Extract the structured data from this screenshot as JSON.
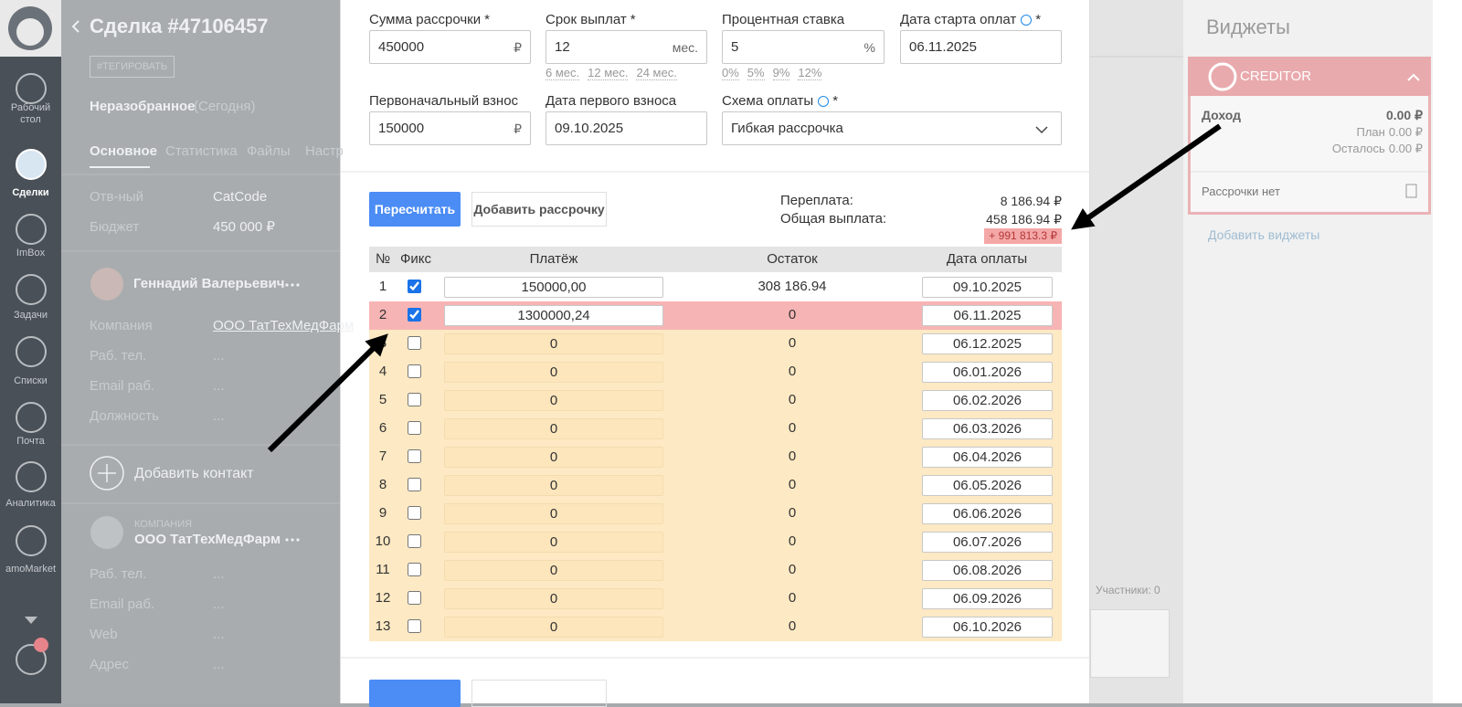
{
  "sidebar": {
    "items": [
      "Рабочий стол",
      "Сделки",
      "ImBox",
      "Задачи",
      "Списки",
      "Почта",
      "Аналитика",
      "amoMarket"
    ],
    "active": 1,
    "notifications": "3"
  },
  "deal": {
    "title": "Сделка #47106457",
    "tag": "#ТЕГИРОВАТЬ",
    "status": "Неразобранное",
    "status_date": "(Сегодня)",
    "tabs": [
      "Основное",
      "Статистика",
      "Файлы",
      "Настр"
    ],
    "fields": [
      {
        "label": "Отв-ный",
        "value": "CatCode"
      },
      {
        "label": "Бюджет",
        "value": "450 000 ₽"
      }
    ],
    "contact": {
      "name": "Геннадий Валерьевич",
      "fields": [
        {
          "label": "Компания",
          "value": "ООО ТатТехМедФарм"
        },
        {
          "label": "Раб. тел.",
          "value": "..."
        },
        {
          "label": "Email раб.",
          "value": "..."
        },
        {
          "label": "Должность",
          "value": "..."
        }
      ]
    },
    "add_contact": "Добавить контакт",
    "company": {
      "caption": "КОМПАНИЯ",
      "name": "ООО ТатТехМедФарм",
      "fields": [
        {
          "label": "Раб. тел.",
          "value": "..."
        },
        {
          "label": "Email раб.",
          "value": "..."
        },
        {
          "label": "Web",
          "value": "..."
        },
        {
          "label": "Адрес",
          "value": "..."
        }
      ]
    }
  },
  "modal": {
    "fields": [
      {
        "label": "Сумма рассрочки",
        "required": "*",
        "value": "450000",
        "suffix": "₽"
      },
      {
        "label": "Срок выплат",
        "required": "*",
        "value": "12",
        "suffix": "мес.",
        "presets": [
          "6 мес.",
          "12 мес.",
          "24 мес."
        ]
      },
      {
        "label": "Процентная ставка",
        "value": "5",
        "suffix": "%",
        "presets": [
          "0%",
          "5%",
          "9%",
          "12%"
        ]
      },
      {
        "label": "Дата старта оплат",
        "info": true,
        "required": "*",
        "value": "06.11.2025"
      },
      {
        "label": "Первоначальный взнос",
        "value": "150000",
        "suffix": "₽"
      },
      {
        "label": "Дата первого взноса",
        "value": "09.10.2025"
      },
      {
        "label": "Схема оплаты",
        "info": true,
        "required": "*",
        "value": "Гибкая рассрочка",
        "select": true
      }
    ],
    "buttons": [
      "Пересчитать",
      "Добавить рассрочку"
    ],
    "summary": [
      {
        "label": "Переплата:",
        "value": "8 186.94 ₽"
      },
      {
        "label": "Общая выплата:",
        "value": "458 186.94 ₽"
      }
    ],
    "difference": "+ 991 813.3 ₽",
    "table": {
      "columns": [
        "№",
        "Фикс",
        "Платёж",
        "Остаток",
        "Дата оплаты"
      ],
      "highlight_row": 1,
      "rows": [
        {
          "n": "1",
          "fixed": true,
          "payment": "150000,00",
          "remaining": "308 186.94",
          "date": "09.10.2025"
        },
        {
          "n": "2",
          "fixed": true,
          "payment": "1300000,24",
          "remaining": "0",
          "date": "06.11.2025"
        },
        {
          "n": "3",
          "fixed": false,
          "payment": "0",
          "remaining": "0",
          "date": "06.12.2025"
        },
        {
          "n": "4",
          "fixed": false,
          "payment": "0",
          "remaining": "0",
          "date": "06.01.2026"
        },
        {
          "n": "5",
          "fixed": false,
          "payment": "0",
          "remaining": "0",
          "date": "06.02.2026"
        },
        {
          "n": "6",
          "fixed": false,
          "payment": "0",
          "remaining": "0",
          "date": "06.03.2026"
        },
        {
          "n": "7",
          "fixed": false,
          "payment": "0",
          "remaining": "0",
          "date": "06.04.2026"
        },
        {
          "n": "8",
          "fixed": false,
          "payment": "0",
          "remaining": "0",
          "date": "06.05.2026"
        },
        {
          "n": "9",
          "fixed": false,
          "payment": "0",
          "remaining": "0",
          "date": "06.06.2026"
        },
        {
          "n": "10",
          "fixed": false,
          "payment": "0",
          "remaining": "0",
          "date": "06.07.2026"
        },
        {
          "n": "11",
          "fixed": false,
          "payment": "0",
          "remaining": "0",
          "date": "06.08.2026"
        },
        {
          "n": "12",
          "fixed": false,
          "payment": "0",
          "remaining": "0",
          "date": "06.09.2026"
        },
        {
          "n": "13",
          "fixed": false,
          "payment": "0",
          "remaining": "0",
          "date": "06.10.2026"
        }
      ]
    }
  },
  "widgets": {
    "title": "Виджеты",
    "name": "CREDITOR",
    "income": {
      "label": "Доход",
      "value": "0.00 ₽"
    },
    "plan": {
      "label": "План",
      "value": "0.00 ₽"
    },
    "left": {
      "label": "Осталось",
      "value": "0.00 ₽"
    },
    "empty": "Рассрочки нет",
    "add": "Добавить виджеты"
  },
  "participants": "Участники: 0"
}
